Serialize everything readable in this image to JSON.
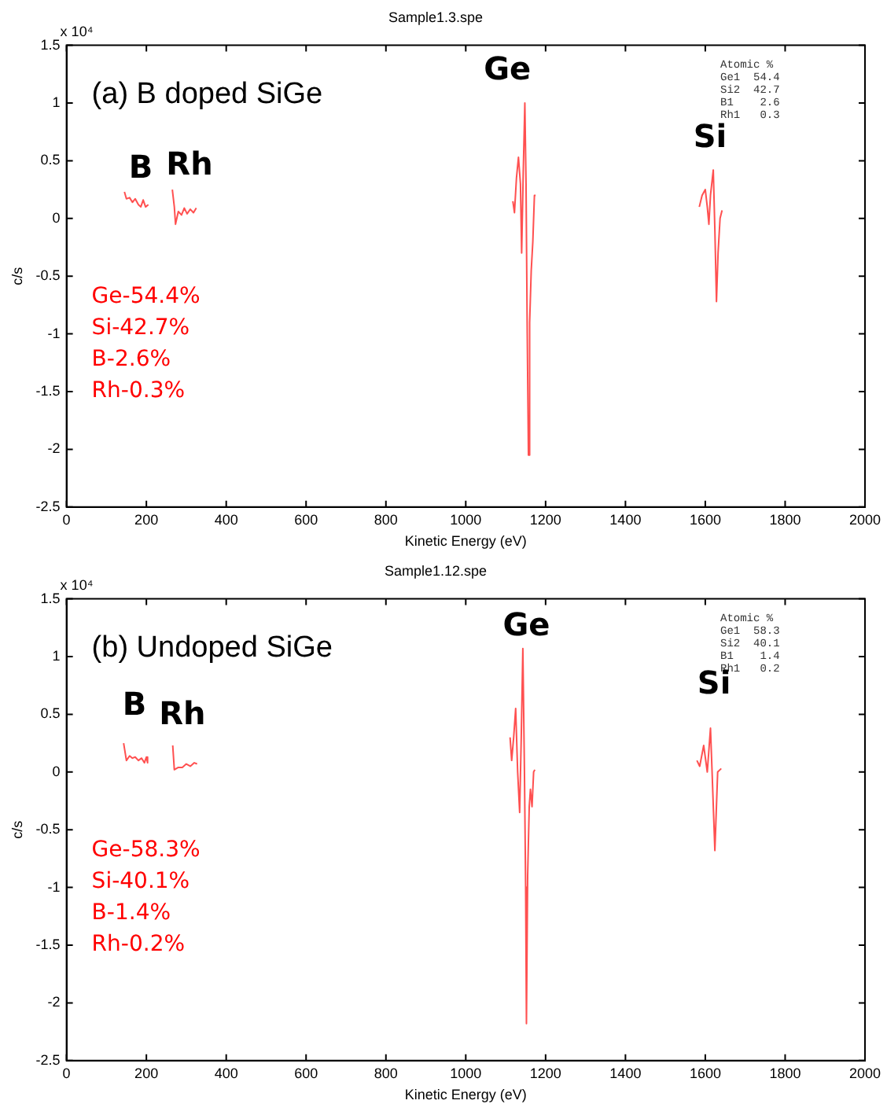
{
  "chart_data": [
    {
      "type": "line",
      "title": "Sample1.3.spe",
      "xlabel": "Kinetic Energy (eV)",
      "ylabel": "c/s",
      "xlim": [
        0,
        2000
      ],
      "xticks": [
        0,
        200,
        400,
        600,
        800,
        1000,
        1200,
        1400,
        1600,
        1800,
        2000
      ],
      "ylim": [
        -2.5,
        1.5
      ],
      "yticks": [
        -2.5,
        -2,
        -1.5,
        -1,
        -0.5,
        0,
        0.5,
        1,
        1.5
      ],
      "grid": false,
      "legend": false,
      "marker": "none",
      "line_style": "solid",
      "series": [
        {
          "color": "#ff5050",
          "x": [
            145,
            150,
            158,
            165,
            172,
            180,
            186,
            192,
            198,
            205
          ],
          "values": [
            0.23,
            0.17,
            0.18,
            0.14,
            0.17,
            0.12,
            0.1,
            0.16,
            0.1,
            0.12
          ]
        },
        {
          "color": "#ff5050",
          "x": [
            265,
            270,
            273,
            280,
            288,
            295,
            302,
            310,
            318,
            325
          ],
          "values": [
            0.25,
            0.1,
            -0.05,
            0.06,
            0.03,
            0.09,
            0.04,
            0.08,
            0.05,
            0.09
          ]
        },
        {
          "color": "#ff5050",
          "x": [
            1118,
            1122,
            1127,
            1132,
            1137,
            1140,
            1144,
            1148,
            1151,
            1154,
            1157,
            1160,
            1164,
            1168,
            1172,
            1175
          ],
          "values": [
            0.15,
            0.05,
            0.35,
            0.53,
            0.3,
            -0.3,
            0.4,
            1.0,
            0.3,
            -1.0,
            -2.05,
            -0.9,
            -0.45,
            -0.2,
            0.2,
            0.2
          ]
        },
        {
          "color": "#ff5050",
          "x": [
            1585,
            1592,
            1600,
            1605,
            1609,
            1613,
            1620,
            1624,
            1628,
            1632,
            1637,
            1642
          ],
          "values": [
            0.1,
            0.2,
            0.25,
            0.1,
            -0.05,
            0.2,
            0.42,
            -0.1,
            -0.72,
            -0.3,
            0.0,
            0.07
          ]
        }
      ],
      "annotations": [
        "x 10⁴",
        "(a) B doped SiGe",
        "Ge-54.4%\nSi-42.7%\nB-2.6%\nRh-0.3%",
        "Atomic %\nGe1  54.4\nSi2  42.7\nB1    2.6\nRh1   0.3",
        "Ge",
        "Si",
        "B",
        "Rh"
      ]
    },
    {
      "type": "line",
      "title": "Sample1.12.spe",
      "xlabel": "Kinetic Energy (eV)",
      "ylabel": "c/s",
      "xlim": [
        0,
        2000
      ],
      "xticks": [
        0,
        200,
        400,
        600,
        800,
        1000,
        1200,
        1400,
        1600,
        1800,
        2000
      ],
      "ylim": [
        -2.5,
        1.5
      ],
      "yticks": [
        -2.5,
        -2,
        -1.5,
        -1,
        -0.5,
        0,
        0.5,
        1,
        1.5
      ],
      "grid": false,
      "legend": false,
      "marker": "none",
      "line_style": "solid",
      "series": [
        {
          "color": "#ff5050",
          "x": [
            143,
            150,
            158,
            165,
            172,
            180,
            188,
            195,
            200,
            203
          ],
          "values": [
            0.25,
            0.1,
            0.14,
            0.12,
            0.13,
            0.1,
            0.12,
            0.08,
            0.13,
            0.08
          ]
        },
        {
          "color": "#ff5050",
          "x": [
            266,
            270,
            280,
            290,
            300,
            310,
            320,
            327
          ],
          "values": [
            0.23,
            0.02,
            0.04,
            0.04,
            0.07,
            0.05,
            0.08,
            0.07
          ]
        },
        {
          "color": "#ff5050",
          "x": [
            1111,
            1115,
            1120,
            1125,
            1130,
            1135,
            1139,
            1143,
            1147,
            1150,
            1152,
            1155,
            1159,
            1162,
            1166,
            1170,
            1173
          ],
          "values": [
            0.3,
            0.1,
            0.3,
            0.55,
            0.0,
            -0.35,
            0.3,
            1.07,
            0.0,
            -1.0,
            -2.18,
            -0.9,
            -0.3,
            -0.15,
            -0.3,
            0.0,
            0.02
          ]
        },
        {
          "color": "#ff5050",
          "x": [
            1579,
            1586,
            1596,
            1605,
            1613,
            1617,
            1624,
            1631,
            1640
          ],
          "values": [
            0.1,
            0.05,
            0.23,
            0.0,
            0.38,
            0.0,
            -0.68,
            0.0,
            0.03
          ]
        }
      ],
      "annotations": [
        "x 10⁴",
        "(b) Undoped SiGe",
        "Ge-58.3%\nSi-40.1%\nB-1.4%\nRh-0.2%",
        "Atomic %\nGe1  58.3\nSi2  40.1\nB1    1.4\nRh1   0.2",
        "Ge",
        "Si",
        "B",
        "Rh"
      ]
    }
  ]
}
